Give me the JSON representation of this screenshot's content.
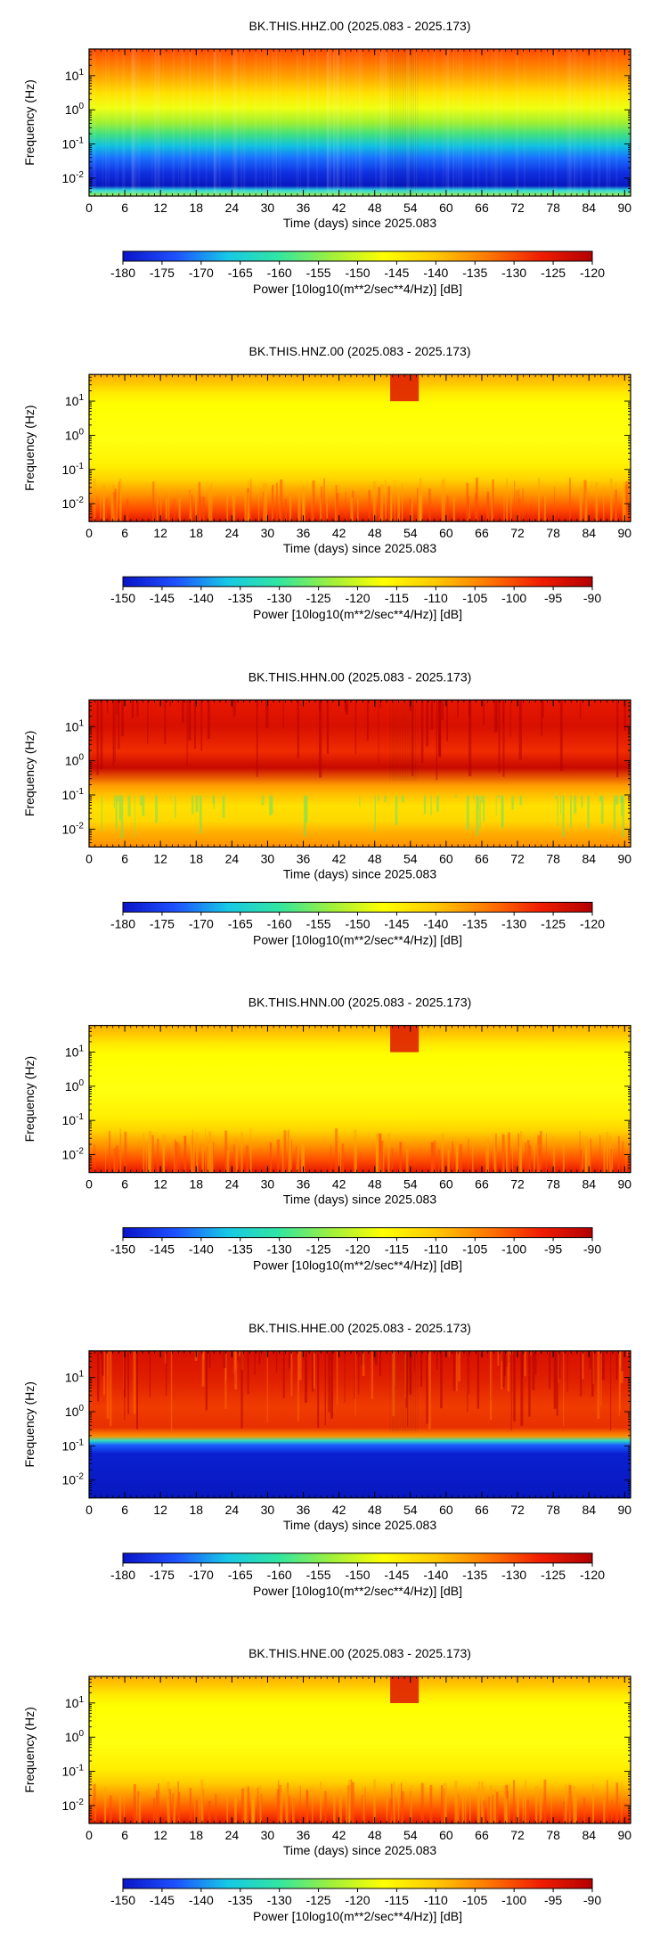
{
  "chart_data": [
    {
      "type": "heatmap",
      "title": "BK.THIS.HHZ.00 (2025.083 - 2025.173)",
      "xlabel": "Time (days) since 2025.083",
      "ylabel": "Frequency (Hz)",
      "xlim": [
        0,
        91
      ],
      "x_ticks": [
        "0",
        "6",
        "12",
        "18",
        "24",
        "30",
        "36",
        "42",
        "48",
        "54",
        "60",
        "66",
        "72",
        "78",
        "84",
        "90"
      ],
      "y_scale": "log",
      "ylim": [
        0.003,
        60
      ],
      "y_ticks": [
        {
          "mantissa": "10",
          "exp": "-2"
        },
        {
          "mantissa": "10",
          "exp": "-1"
        },
        {
          "mantissa": "10",
          "exp": "0"
        },
        {
          "mantissa": "10",
          "exp": "1"
        }
      ],
      "colorbar": {
        "label": "Power [10log10(m**2/sec**4/Hz)] [dB]",
        "range": [
          -180,
          -120
        ],
        "ticks": [
          "-180",
          "-175",
          "-170",
          "-165",
          "-160",
          "-155",
          "-150",
          "-145",
          "-140",
          "-135",
          "-130",
          "-125",
          "-120"
        ]
      },
      "pattern": "hh-vertical"
    },
    {
      "type": "heatmap",
      "title": "BK.THIS.HNZ.00 (2025.083 - 2025.173)",
      "xlabel": "Time (days) since 2025.083",
      "ylabel": "Frequency (Hz)",
      "xlim": [
        0,
        91
      ],
      "x_ticks": [
        "0",
        "6",
        "12",
        "18",
        "24",
        "30",
        "36",
        "42",
        "48",
        "54",
        "60",
        "66",
        "72",
        "78",
        "84",
        "90"
      ],
      "y_scale": "log",
      "ylim": [
        0.003,
        60
      ],
      "y_ticks": [
        {
          "mantissa": "10",
          "exp": "-2"
        },
        {
          "mantissa": "10",
          "exp": "-1"
        },
        {
          "mantissa": "10",
          "exp": "0"
        },
        {
          "mantissa": "10",
          "exp": "1"
        }
      ],
      "colorbar": {
        "label": "Power [10log10(m**2/sec**4/Hz)] [dB]",
        "range": [
          -150,
          -90
        ],
        "ticks": [
          "-150",
          "-145",
          "-140",
          "-135",
          "-130",
          "-125",
          "-120",
          "-115",
          "-110",
          "-105",
          "-100",
          "-95",
          "-90"
        ]
      },
      "pattern": "hn"
    },
    {
      "type": "heatmap",
      "title": "BK.THIS.HHN.00 (2025.083 - 2025.173)",
      "xlabel": "Time (days) since 2025.083",
      "ylabel": "Frequency (Hz)",
      "xlim": [
        0,
        91
      ],
      "x_ticks": [
        "0",
        "6",
        "12",
        "18",
        "24",
        "30",
        "36",
        "42",
        "48",
        "54",
        "60",
        "66",
        "72",
        "78",
        "84",
        "90"
      ],
      "y_scale": "log",
      "ylim": [
        0.003,
        60
      ],
      "y_ticks": [
        {
          "mantissa": "10",
          "exp": "-2"
        },
        {
          "mantissa": "10",
          "exp": "-1"
        },
        {
          "mantissa": "10",
          "exp": "0"
        },
        {
          "mantissa": "10",
          "exp": "1"
        }
      ],
      "colorbar": {
        "label": "Power [10log10(m**2/sec**4/Hz)] [dB]",
        "range": [
          -180,
          -120
        ],
        "ticks": [
          "-180",
          "-175",
          "-170",
          "-165",
          "-160",
          "-155",
          "-150",
          "-145",
          "-140",
          "-135",
          "-130",
          "-125",
          "-120"
        ]
      },
      "pattern": "hh-horizontal-n"
    },
    {
      "type": "heatmap",
      "title": "BK.THIS.HNN.00 (2025.083 - 2025.173)",
      "xlabel": "Time (days) since 2025.083",
      "ylabel": "Frequency (Hz)",
      "xlim": [
        0,
        91
      ],
      "x_ticks": [
        "0",
        "6",
        "12",
        "18",
        "24",
        "30",
        "36",
        "42",
        "48",
        "54",
        "60",
        "66",
        "72",
        "78",
        "84",
        "90"
      ],
      "y_scale": "log",
      "ylim": [
        0.003,
        60
      ],
      "y_ticks": [
        {
          "mantissa": "10",
          "exp": "-2"
        },
        {
          "mantissa": "10",
          "exp": "-1"
        },
        {
          "mantissa": "10",
          "exp": "0"
        },
        {
          "mantissa": "10",
          "exp": "1"
        }
      ],
      "colorbar": {
        "label": "Power [10log10(m**2/sec**4/Hz)] [dB]",
        "range": [
          -150,
          -90
        ],
        "ticks": [
          "-150",
          "-145",
          "-140",
          "-135",
          "-130",
          "-125",
          "-120",
          "-115",
          "-110",
          "-105",
          "-100",
          "-95",
          "-90"
        ]
      },
      "pattern": "hn"
    },
    {
      "type": "heatmap",
      "title": "BK.THIS.HHE.00 (2025.083 - 2025.173)",
      "xlabel": "Time (days) since 2025.083",
      "ylabel": "Frequency (Hz)",
      "xlim": [
        0,
        91
      ],
      "x_ticks": [
        "0",
        "6",
        "12",
        "18",
        "24",
        "30",
        "36",
        "42",
        "48",
        "54",
        "60",
        "66",
        "72",
        "78",
        "84",
        "90"
      ],
      "y_scale": "log",
      "ylim": [
        0.003,
        60
      ],
      "y_ticks": [
        {
          "mantissa": "10",
          "exp": "-2"
        },
        {
          "mantissa": "10",
          "exp": "-1"
        },
        {
          "mantissa": "10",
          "exp": "0"
        },
        {
          "mantissa": "10",
          "exp": "1"
        }
      ],
      "colorbar": {
        "label": "Power [10log10(m**2/sec**4/Hz)] [dB]",
        "range": [
          -180,
          -120
        ],
        "ticks": [
          "-180",
          "-175",
          "-170",
          "-165",
          "-160",
          "-155",
          "-150",
          "-145",
          "-140",
          "-135",
          "-130",
          "-125",
          "-120"
        ]
      },
      "pattern": "hh-horizontal-e"
    },
    {
      "type": "heatmap",
      "title": "BK.THIS.HNE.00 (2025.083 - 2025.173)",
      "xlabel": "Time (days) since 2025.083",
      "ylabel": "Frequency (Hz)",
      "xlim": [
        0,
        91
      ],
      "x_ticks": [
        "0",
        "6",
        "12",
        "18",
        "24",
        "30",
        "36",
        "42",
        "48",
        "54",
        "60",
        "66",
        "72",
        "78",
        "84",
        "90"
      ],
      "y_scale": "log",
      "ylim": [
        0.003,
        60
      ],
      "y_ticks": [
        {
          "mantissa": "10",
          "exp": "-2"
        },
        {
          "mantissa": "10",
          "exp": "-1"
        },
        {
          "mantissa": "10",
          "exp": "0"
        },
        {
          "mantissa": "10",
          "exp": "1"
        }
      ],
      "colorbar": {
        "label": "Power [10log10(m**2/sec**4/Hz)] [dB]",
        "range": [
          -150,
          -90
        ],
        "ticks": [
          "-150",
          "-145",
          "-140",
          "-135",
          "-130",
          "-125",
          "-120",
          "-115",
          "-110",
          "-105",
          "-100",
          "-95",
          "-90"
        ]
      },
      "pattern": "hn"
    }
  ]
}
